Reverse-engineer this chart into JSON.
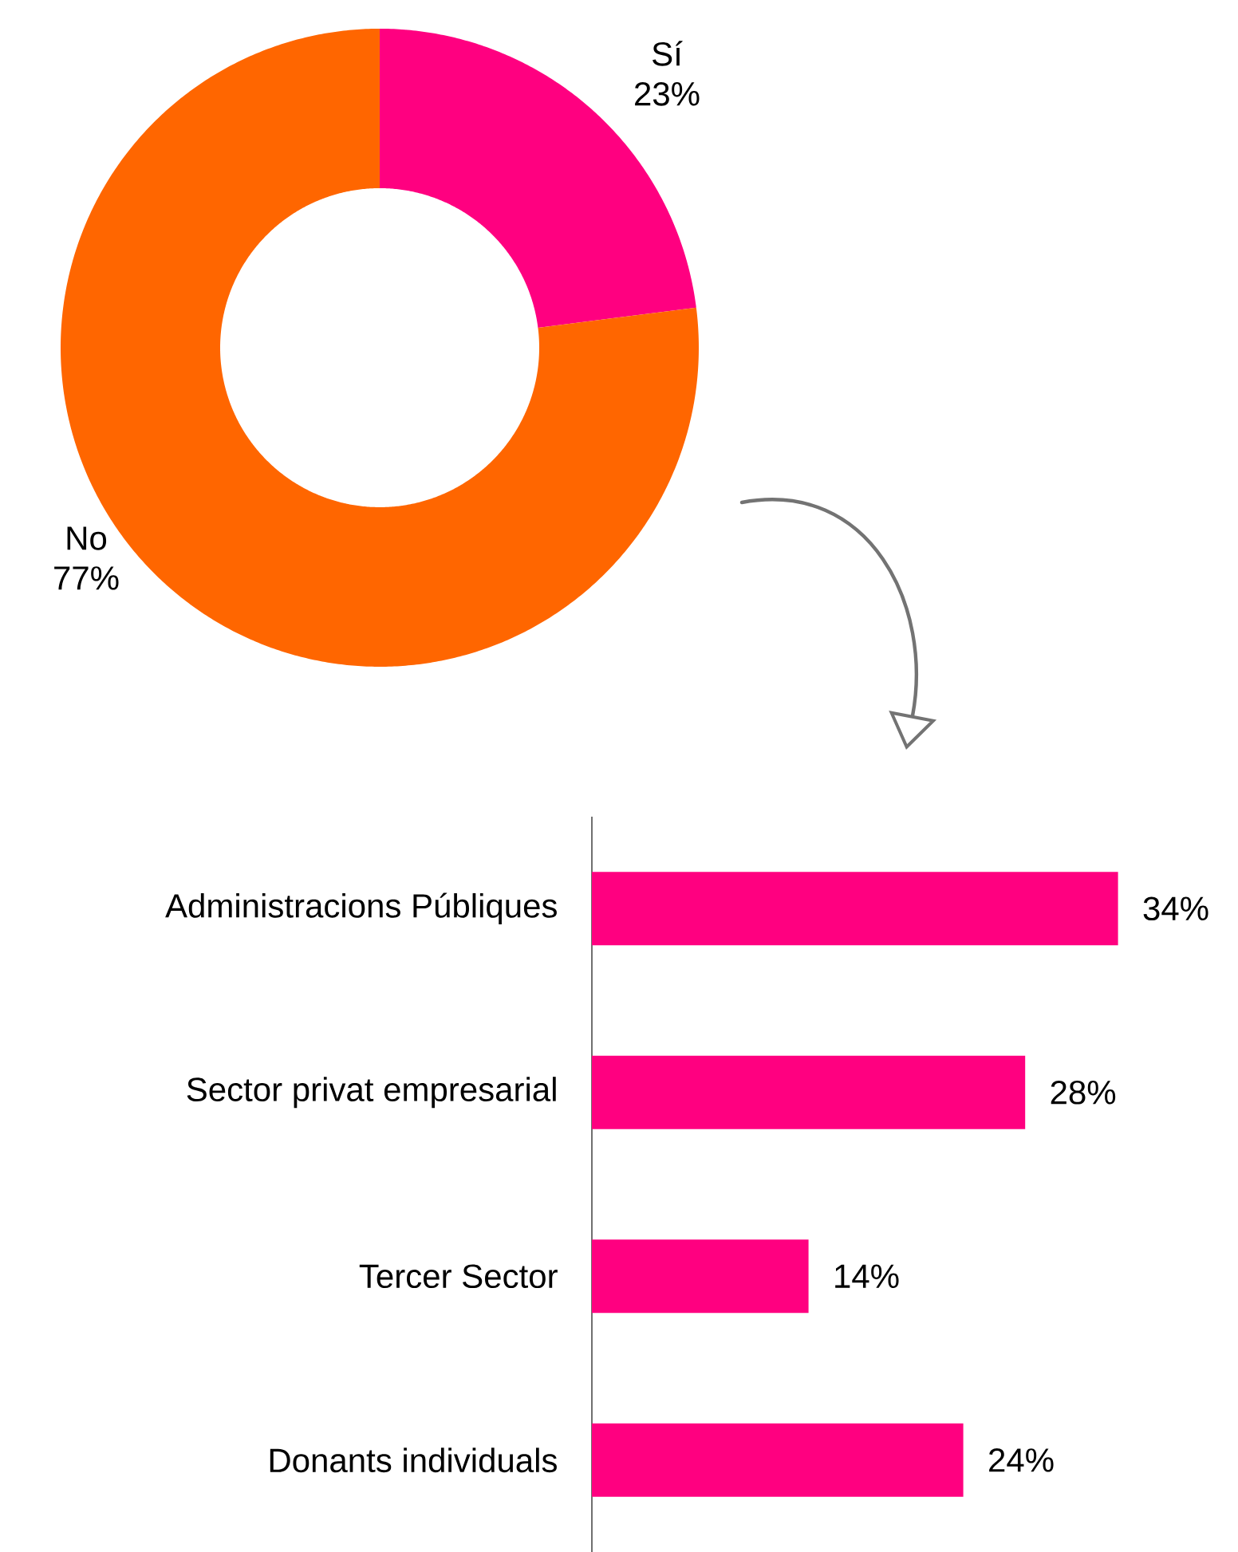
{
  "chart_data": [
    {
      "type": "donut",
      "categories": [
        "Sí",
        "No"
      ],
      "values": [
        23,
        77
      ],
      "colors": [
        "#ff0080",
        "#ff6600"
      ],
      "value_labels": [
        "23%",
        "77%"
      ]
    },
    {
      "type": "bar",
      "orientation": "horizontal",
      "categories": [
        "Administracions Públiques",
        "Sector privat empresarial",
        "Tercer Sector",
        "Donants individuals"
      ],
      "values": [
        34,
        28,
        14,
        24
      ],
      "color": "#ff0080",
      "value_labels": [
        "34%",
        "28%",
        "14%",
        "24%"
      ]
    }
  ]
}
